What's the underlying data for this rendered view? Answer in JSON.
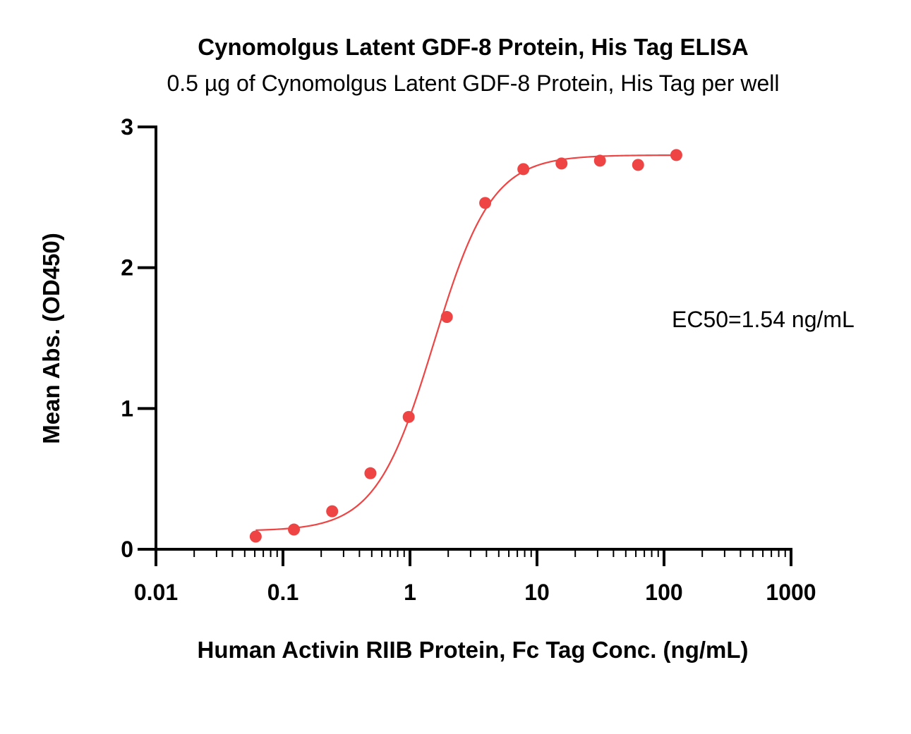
{
  "chart_data": {
    "type": "scatter",
    "title": "Cynomolgus Latent GDF-8 Protein, His Tag ELISA",
    "subtitle": "0.5 µg of Cynomolgus Latent GDF-8 Protein, His Tag per well",
    "xlabel": "Human Activin RIIB Protein, Fc Tag Conc. (ng/mL)",
    "ylabel": "Mean Abs. (OD450)",
    "x_scale": "log",
    "xlim": [
      0.01,
      1000
    ],
    "ylim": [
      0,
      3
    ],
    "x_ticks": [
      0.01,
      0.1,
      1,
      10,
      100,
      1000
    ],
    "x_tick_labels": [
      "0.01",
      "0.1",
      "1",
      "10",
      "100",
      "1000"
    ],
    "y_ticks": [
      0,
      1,
      2,
      3
    ],
    "y_tick_labels": [
      "0",
      "1",
      "2",
      "3"
    ],
    "series": [
      {
        "color": "#ee4444",
        "x": [
          0.061,
          0.122,
          0.244,
          0.488,
          0.977,
          1.95,
          3.91,
          7.81,
          15.6,
          31.3,
          62.5,
          125
        ],
        "y": [
          0.09,
          0.14,
          0.27,
          0.54,
          0.94,
          1.65,
          2.46,
          2.7,
          2.74,
          2.76,
          2.73,
          2.8
        ]
      }
    ],
    "fit": {
      "bottom": 0.13,
      "top": 2.8,
      "ec50": 1.54,
      "hill": 1.9,
      "x_range": [
        0.061,
        125
      ]
    },
    "annotation": "EC50=1.54 ng/mL",
    "grid": false
  }
}
